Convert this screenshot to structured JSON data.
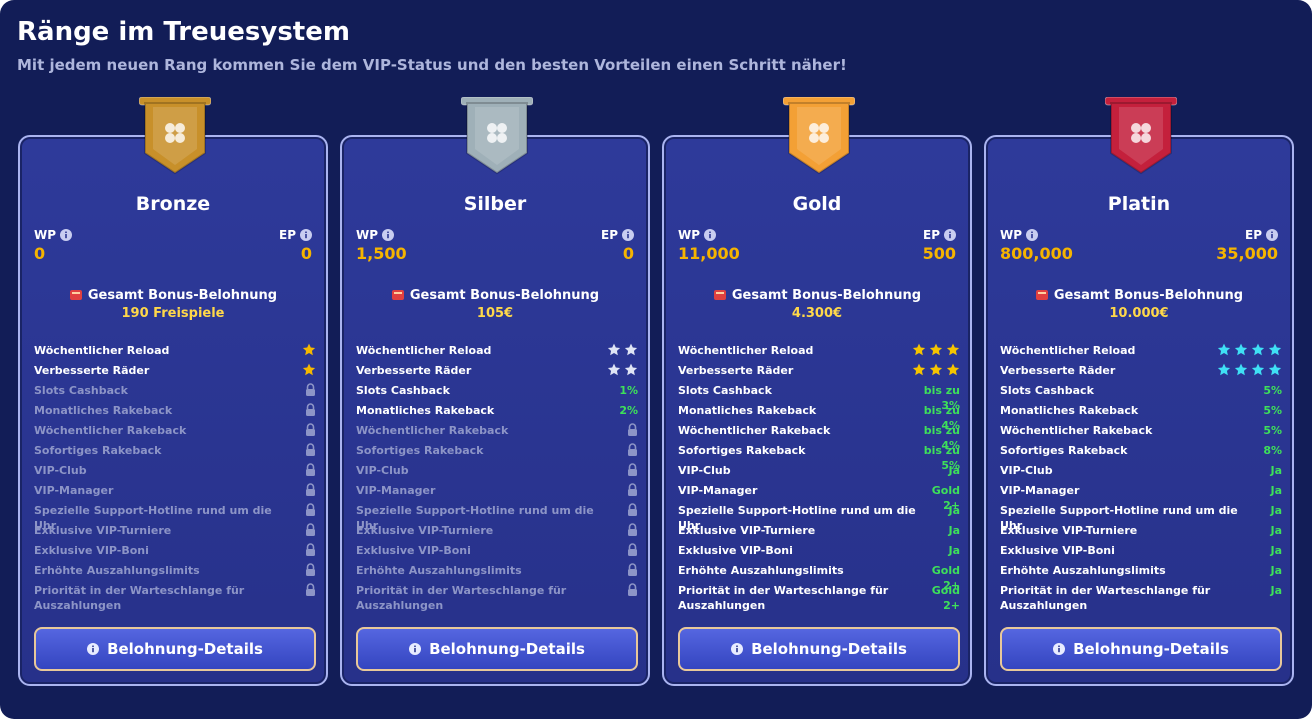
{
  "header": {
    "title": "Ränge im Treuesystem",
    "subtitle": "Mit jedem neuen Rang kommen Sie dem VIP-Status und den besten Vorteilen einen Schritt näher!"
  },
  "wp_label": "WP",
  "ep_label": "EP",
  "bonus_label": "Gesamt Bonus-Belohnung",
  "button": "Belohnung-Details",
  "features": [
    "Wöchentlicher Reload",
    "Verbesserte Räder",
    "Slots Cashback",
    "Monatliches Rakeback",
    "Wöchentlicher Rakeback",
    "Sofortiges Rakeback",
    "VIP-Club",
    "VIP-Manager",
    "Spezielle Support-Hotline rund um die Uhr",
    "Exklusive VIP-Turniere",
    "Exklusive VIP-Boni",
    "Erhöhte Auszahlungslimits",
    "Priorität in der Warteschlange für Auszahlungen"
  ],
  "cards": [
    {
      "name": "Bronze",
      "badge_color": "#c8902a",
      "star_color": "#f5b800",
      "wp": "0",
      "ep": "0",
      "bonus": "190 Freispiele",
      "values": [
        1,
        1,
        null,
        null,
        null,
        null,
        null,
        null,
        null,
        null,
        null,
        null,
        null
      ]
    },
    {
      "name": "Silber",
      "badge_color": "#9fb0b8",
      "star_color": "#dfe4f5",
      "wp": "1,500",
      "ep": "0",
      "bonus": "105€",
      "values": [
        2,
        2,
        "1%",
        "2%",
        null,
        null,
        null,
        null,
        null,
        null,
        null,
        null,
        null
      ]
    },
    {
      "name": "Gold",
      "badge_color": "#f3a035",
      "star_color": "#f5c400",
      "wp": "11,000",
      "ep": "500",
      "bonus": "4.300€",
      "values": [
        3,
        3,
        "bis zu 3%",
        "bis zu 4%",
        "bis zu 4%",
        "bis zu 5%",
        "Ja",
        "Gold 2+",
        "Ja",
        "Ja",
        "Ja",
        "Gold 2+",
        "Gold 2+"
      ]
    },
    {
      "name": "Platin",
      "badge_color": "#c4203c",
      "star_color": "#3fe0f5",
      "wp": "800,000",
      "ep": "35,000",
      "bonus": "10.000€",
      "values": [
        4,
        4,
        "5%",
        "5%",
        "5%",
        "8%",
        "Ja",
        "Ja",
        "Ja",
        "Ja",
        "Ja",
        "Ja",
        "Ja"
      ]
    }
  ]
}
